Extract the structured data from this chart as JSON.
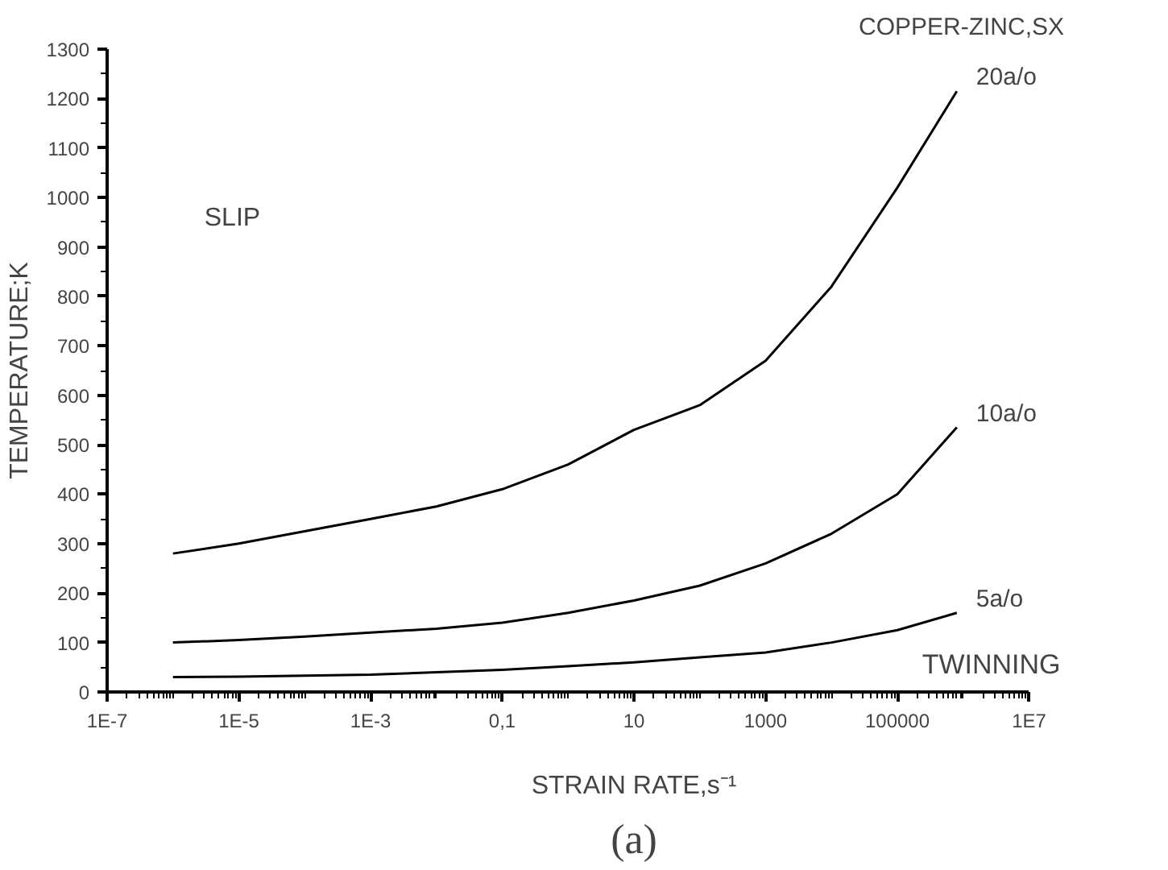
{
  "chart_data": {
    "type": "line",
    "title": "COPPER-ZINC,SX",
    "xlabel": "STRAIN RATE,s⁻¹",
    "ylabel": "TEMPERATURE;K",
    "log": "x",
    "grid": false,
    "marker": "none",
    "line_style": "solid",
    "xlim": [
      1e-07,
      10000000.0
    ],
    "xticks": [
      {
        "value": 1e-07,
        "label": "1E-7"
      },
      {
        "value": 1e-05,
        "label": "1E-5"
      },
      {
        "value": 0.001,
        "label": "1E-3"
      },
      {
        "value": 0.1,
        "label": "0,1"
      },
      10,
      1000,
      100000,
      {
        "value": 10000000.0,
        "label": "1E7"
      }
    ],
    "ylim": [
      0,
      1300
    ],
    "yticks": [
      0,
      100,
      200,
      300,
      400,
      500,
      600,
      700,
      800,
      900,
      1000,
      1100,
      1200,
      1300
    ],
    "x": [
      1e-06,
      1e-05,
      0.0001,
      0.001,
      0.01,
      0.1,
      1,
      10,
      100,
      1000,
      10000,
      100000,
      800000
    ],
    "series": [
      {
        "name": "20a/o",
        "color": "#000000",
        "values": [
          280,
          300,
          325,
          350,
          375,
          410,
          460,
          530,
          580,
          670,
          820,
          1020,
          1215
        ]
      },
      {
        "name": "10a/o",
        "color": "#000000",
        "values": [
          100,
          105,
          112,
          120,
          128,
          140,
          160,
          185,
          215,
          260,
          320,
          400,
          535
        ]
      },
      {
        "name": "5a/o",
        "color": "#000000",
        "values": [
          30,
          31,
          33,
          35,
          40,
          45,
          52,
          60,
          70,
          80,
          100,
          125,
          160
        ]
      }
    ],
    "annotations": [
      "SLIP",
      "TWINNING",
      "(a)"
    ]
  }
}
